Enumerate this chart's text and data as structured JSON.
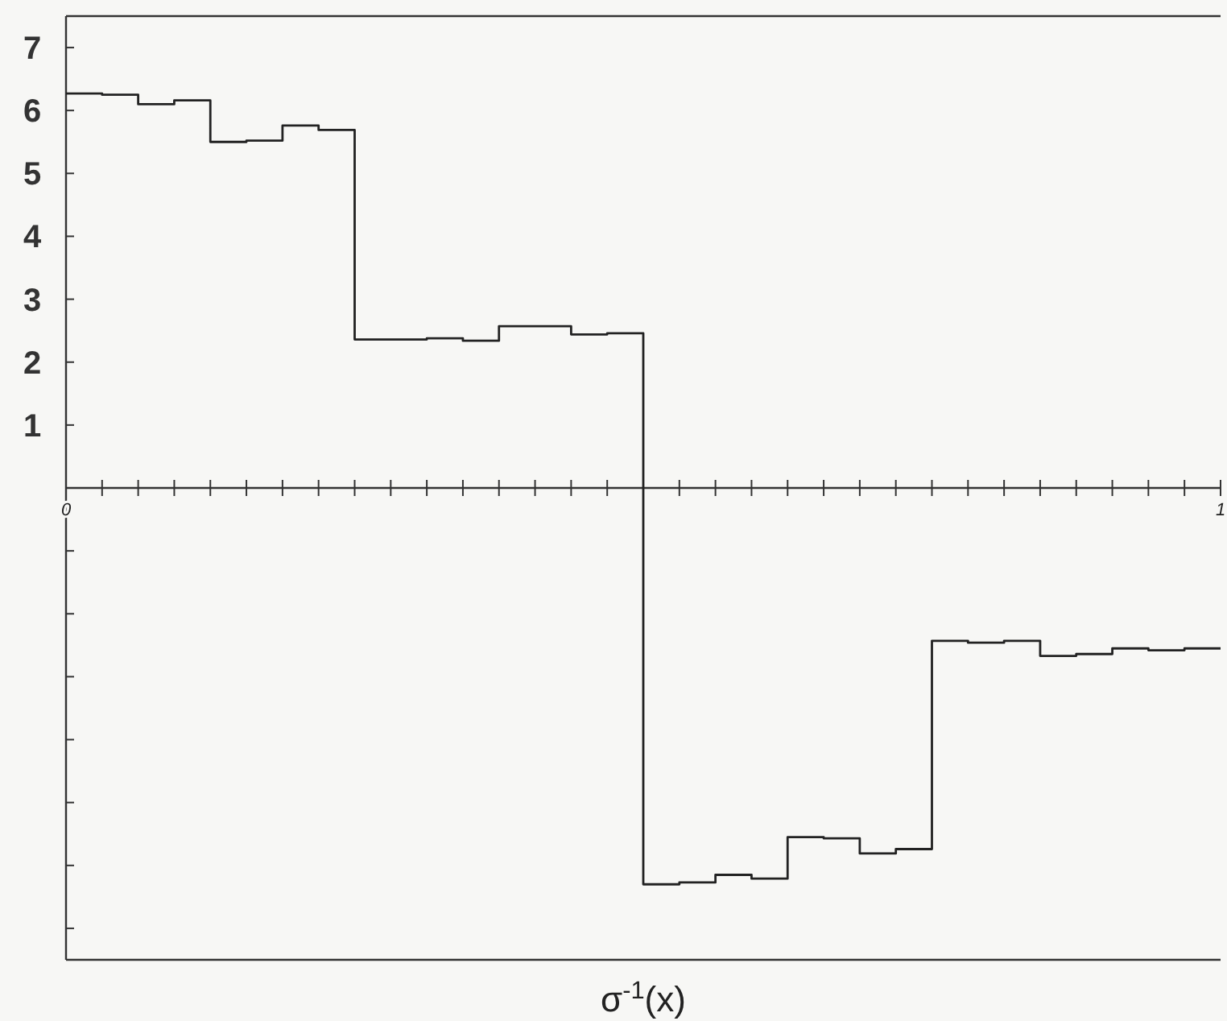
{
  "chart_data": {
    "type": "step",
    "xlabel": "σ$^{-1}$(x)",
    "x": [
      0,
      0.03125,
      0.0625,
      0.09375,
      0.125,
      0.15625,
      0.1875,
      0.21875,
      0.25,
      0.28125,
      0.3125,
      0.34375,
      0.375,
      0.40625,
      0.4375,
      0.46875,
      0.5,
      0.53125,
      0.5625,
      0.59375,
      0.625,
      0.65625,
      0.6875,
      0.71875,
      0.75,
      0.78125,
      0.8125,
      0.84375,
      0.875,
      0.90625,
      0.9375,
      0.96875,
      1
    ],
    "values": [
      6.27,
      6.25,
      6.1,
      6.16,
      5.5,
      5.52,
      5.76,
      5.69,
      2.36,
      2.36,
      2.38,
      2.34,
      2.57,
      2.57,
      2.44,
      2.46,
      -6.3,
      -6.27,
      -6.15,
      -6.21,
      -5.55,
      -5.57,
      -5.81,
      -5.74,
      -2.43,
      -2.46,
      -2.43,
      -2.67,
      -2.64,
      -2.55,
      -2.58,
      -2.55,
      -2.55
    ],
    "color": "#222222",
    "xlim": [
      0,
      1
    ],
    "xticks": [
      0,
      {
        "value": 0.03125,
        "label": null
      },
      {
        "value": 0.0625,
        "label": null
      },
      {
        "value": 0.09375,
        "label": null
      },
      {
        "value": 0.125,
        "label": null
      },
      {
        "value": 0.15625,
        "label": null
      },
      {
        "value": 0.1875,
        "label": null
      },
      {
        "value": 0.21875,
        "label": null
      },
      {
        "value": 0.25,
        "label": null
      },
      {
        "value": 0.28125,
        "label": null
      },
      {
        "value": 0.3125,
        "label": null
      },
      {
        "value": 0.34375,
        "label": null
      },
      {
        "value": 0.375,
        "label": null
      },
      {
        "value": 0.40625,
        "label": null
      },
      {
        "value": 0.4375,
        "label": null
      },
      {
        "value": 0.46875,
        "label": null
      },
      {
        "value": 0.5,
        "label": null
      },
      {
        "value": 0.53125,
        "label": null
      },
      {
        "value": 0.5625,
        "label": null
      },
      {
        "value": 0.59375,
        "label": null
      },
      {
        "value": 0.625,
        "label": null
      },
      {
        "value": 0.65625,
        "label": null
      },
      {
        "value": 0.6875,
        "label": null
      },
      {
        "value": 0.71875,
        "label": null
      },
      {
        "value": 0.75,
        "label": null
      },
      {
        "value": 0.78125,
        "label": null
      },
      {
        "value": 0.8125,
        "label": null
      },
      {
        "value": 0.84375,
        "label": null
      },
      {
        "value": 0.875,
        "label": null
      },
      {
        "value": 0.90625,
        "label": null
      },
      {
        "value": 0.9375,
        "label": null
      },
      {
        "value": 0.96875,
        "label": null
      },
      1
    ],
    "ylim": [
      -7.5,
      7.5
    ],
    "yticks": [
      {
        "value": -7,
        "label": null
      },
      {
        "value": -6,
        "label": null
      },
      {
        "value": -5,
        "label": null
      },
      {
        "value": -4,
        "label": null
      },
      {
        "value": -3,
        "label": null
      },
      {
        "value": -2,
        "label": null
      },
      {
        "value": -1,
        "label": null
      },
      1,
      2,
      3,
      4,
      5,
      6,
      7
    ],
    "grid": false,
    "marker": "none",
    "line_style": "solid"
  }
}
